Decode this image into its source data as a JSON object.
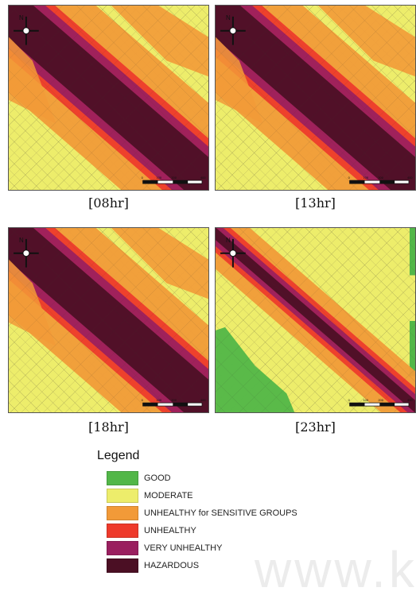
{
  "panels": [
    {
      "caption": "[08hr]",
      "compass": "N",
      "scale_ticks": [
        "0",
        "100",
        "200",
        "400"
      ],
      "has_green": false,
      "dispersion": "wide"
    },
    {
      "caption": "[13hr]",
      "compass": "N",
      "scale_ticks": [
        "0",
        "100",
        "200",
        "400"
      ],
      "has_green": false,
      "dispersion": "wide"
    },
    {
      "caption": "[18hr]",
      "compass": "N",
      "scale_ticks": [
        "0",
        "100",
        "200",
        "400"
      ],
      "has_green": false,
      "dispersion": "wide"
    },
    {
      "caption": "[23hr]",
      "compass": "N",
      "scale_ticks": [
        "0",
        "100",
        "200",
        "400"
      ],
      "has_green": true,
      "dispersion": "narrow"
    }
  ],
  "legend": {
    "title": "Legend",
    "items": [
      {
        "label": "GOOD",
        "color": "#52b748"
      },
      {
        "label": "MODERATE",
        "color": "#eded6b"
      },
      {
        "label": "UNHEALTHY for SENSITIVE GROUPS",
        "color": "#f29a38"
      },
      {
        "label": "UNHEALTHY",
        "color": "#ee3a2b"
      },
      {
        "label": "VERY UNHEALTHY",
        "color": "#9a1f5f"
      },
      {
        "label": "HAZARDOUS",
        "color": "#4b0f24"
      }
    ]
  },
  "watermark": "www.k"
}
